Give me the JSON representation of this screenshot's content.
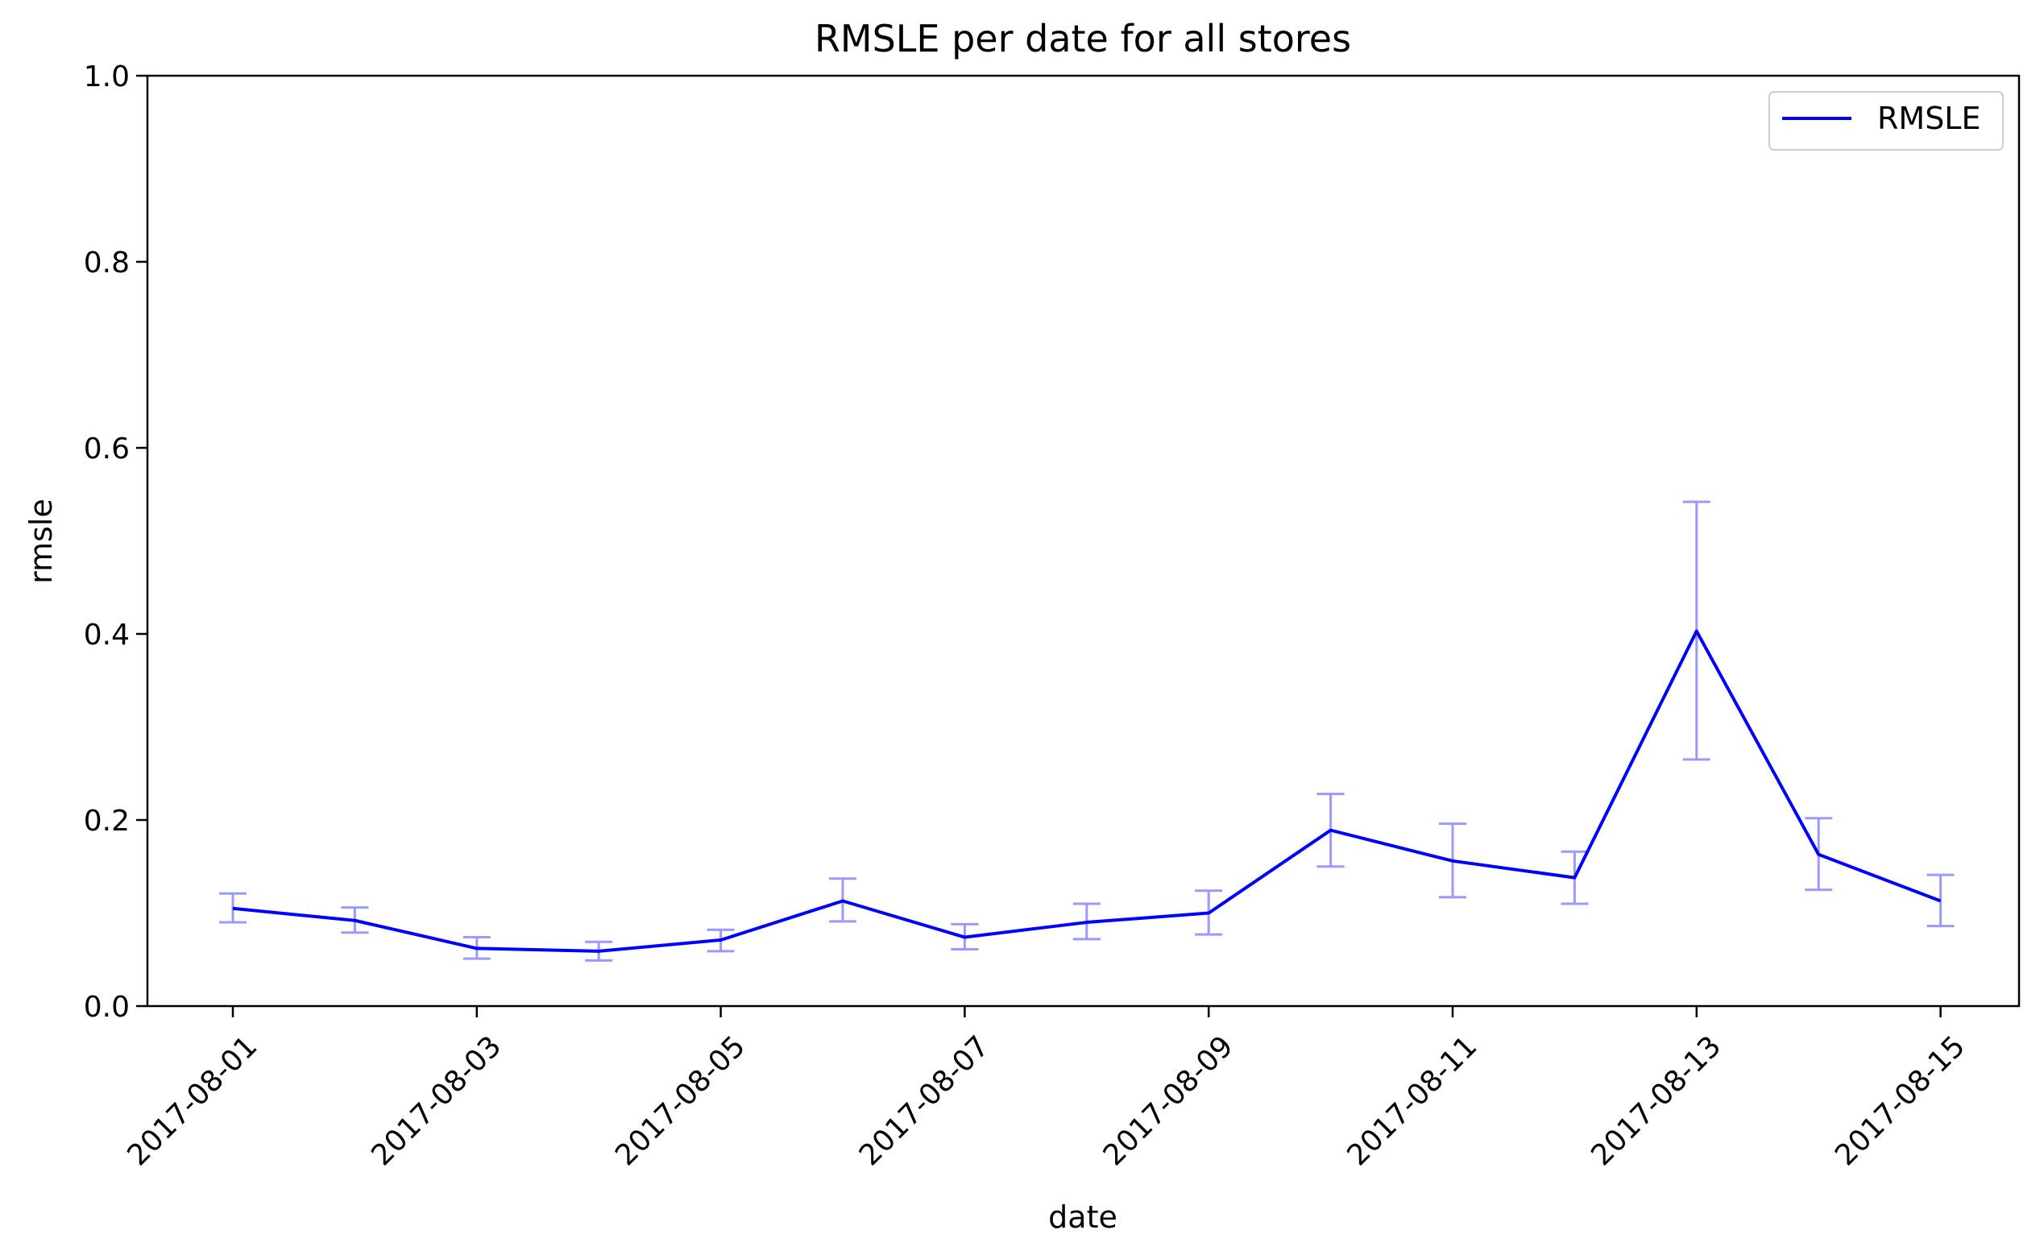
{
  "chart_data": {
    "type": "line",
    "title": "RMSLE per date for all stores",
    "xlabel": "date",
    "ylabel": "rmsle",
    "ylim": [
      0.0,
      1.0
    ],
    "yticks": [
      "0.0",
      "0.2",
      "0.4",
      "0.6",
      "0.8",
      "1.0"
    ],
    "xticks": [
      "2017-08-01",
      "2017-08-03",
      "2017-08-05",
      "2017-08-07",
      "2017-08-09",
      "2017-08-11",
      "2017-08-13",
      "2017-08-15"
    ],
    "x": [
      "2017-08-01",
      "2017-08-02",
      "2017-08-03",
      "2017-08-04",
      "2017-08-05",
      "2017-08-06",
      "2017-08-07",
      "2017-08-08",
      "2017-08-09",
      "2017-08-10",
      "2017-08-11",
      "2017-08-12",
      "2017-08-13",
      "2017-08-14",
      "2017-08-15"
    ],
    "series": [
      {
        "name": "RMSLE",
        "color": "#0000ff",
        "values": [
          0.105,
          0.092,
          0.062,
          0.059,
          0.071,
          0.113,
          0.074,
          0.09,
          0.1,
          0.189,
          0.156,
          0.138,
          0.403,
          0.163,
          0.113
        ],
        "error_low": [
          0.09,
          0.079,
          0.051,
          0.049,
          0.059,
          0.091,
          0.061,
          0.072,
          0.077,
          0.15,
          0.117,
          0.11,
          0.265,
          0.125,
          0.086
        ],
        "error_high": [
          0.121,
          0.106,
          0.074,
          0.069,
          0.082,
          0.137,
          0.088,
          0.11,
          0.124,
          0.228,
          0.196,
          0.166,
          0.542,
          0.202,
          0.141
        ]
      }
    ],
    "legend_position": "top-right",
    "grid": false,
    "error_bar_color": "#9999ff"
  }
}
